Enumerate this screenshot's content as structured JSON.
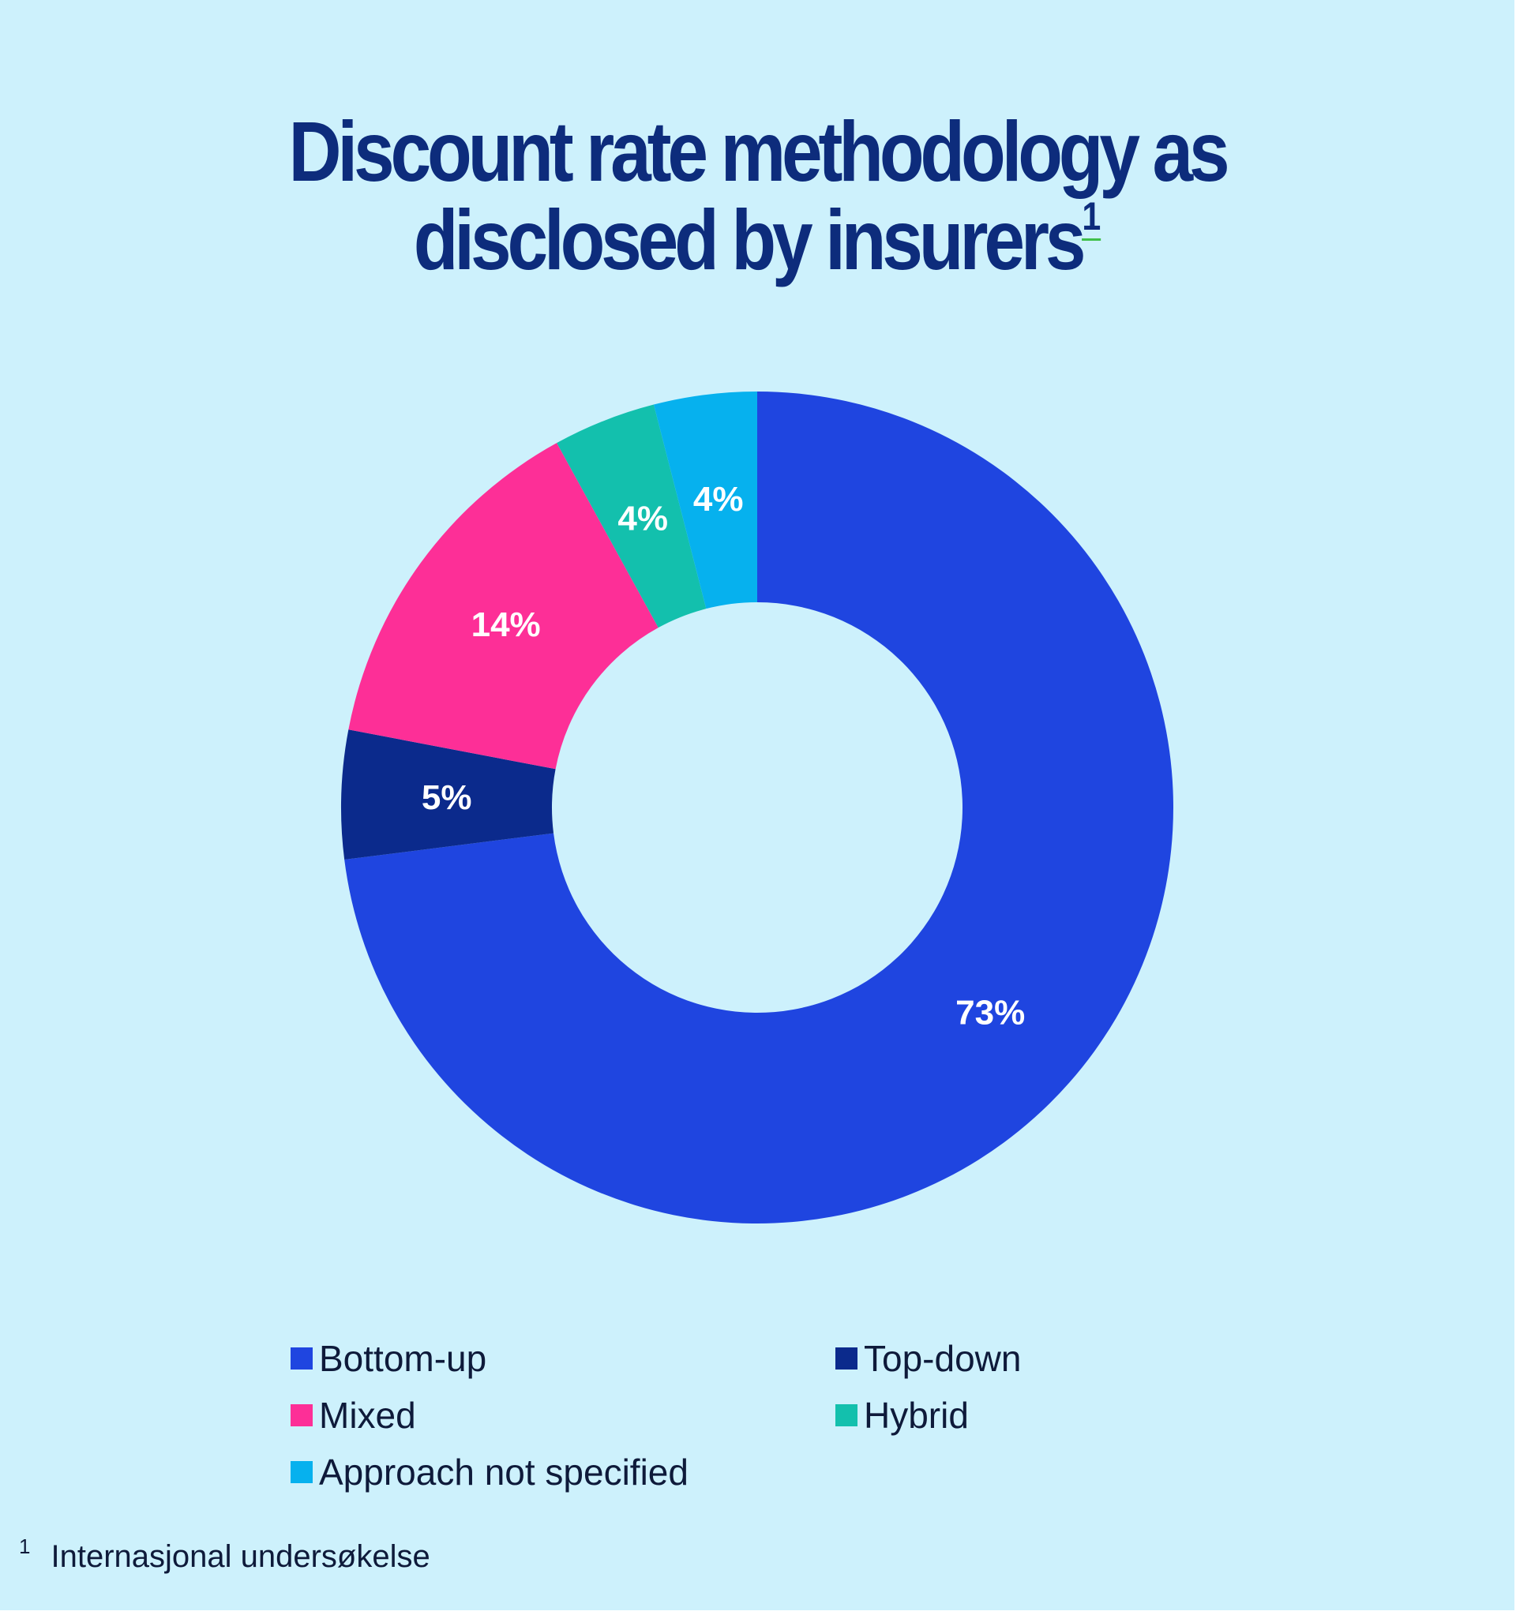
{
  "title": {
    "line1": "Discount rate methodology as",
    "line2": "disclosed by insurers",
    "footnote_ref": "1"
  },
  "chart_data": {
    "type": "pie",
    "donut": true,
    "categories": [
      "Bottom-up",
      "Top-down",
      "Mixed",
      "Hybrid",
      "Approach not specified"
    ],
    "values": [
      73,
      5,
      14,
      4,
      4
    ],
    "data_labels": [
      "73%",
      "5%",
      "14%",
      "4%",
      "4%"
    ],
    "colors": [
      "#1f45e0",
      "#0b2a8c",
      "#fd2f97",
      "#13c0ad",
      "#06b1ee"
    ],
    "legend_position": "bottom",
    "start_angle": "12 o'clock",
    "direction": "clockwise"
  },
  "legend": [
    {
      "label": "Bottom-up",
      "color": "#1f45e0"
    },
    {
      "label": "Top-down",
      "color": "#0b2a8c"
    },
    {
      "label": "Mixed",
      "color": "#fd2f97"
    },
    {
      "label": "Hybrid",
      "color": "#13c0ad"
    },
    {
      "label": "Approach not specified",
      "color": "#06b1ee"
    }
  ],
  "footnote": {
    "marker": "1",
    "text": "Internasjonal undersøkelse"
  },
  "colors": {
    "background": "#cdf1fc",
    "title": "#0d2c7c",
    "text": "#0e1a3a"
  }
}
